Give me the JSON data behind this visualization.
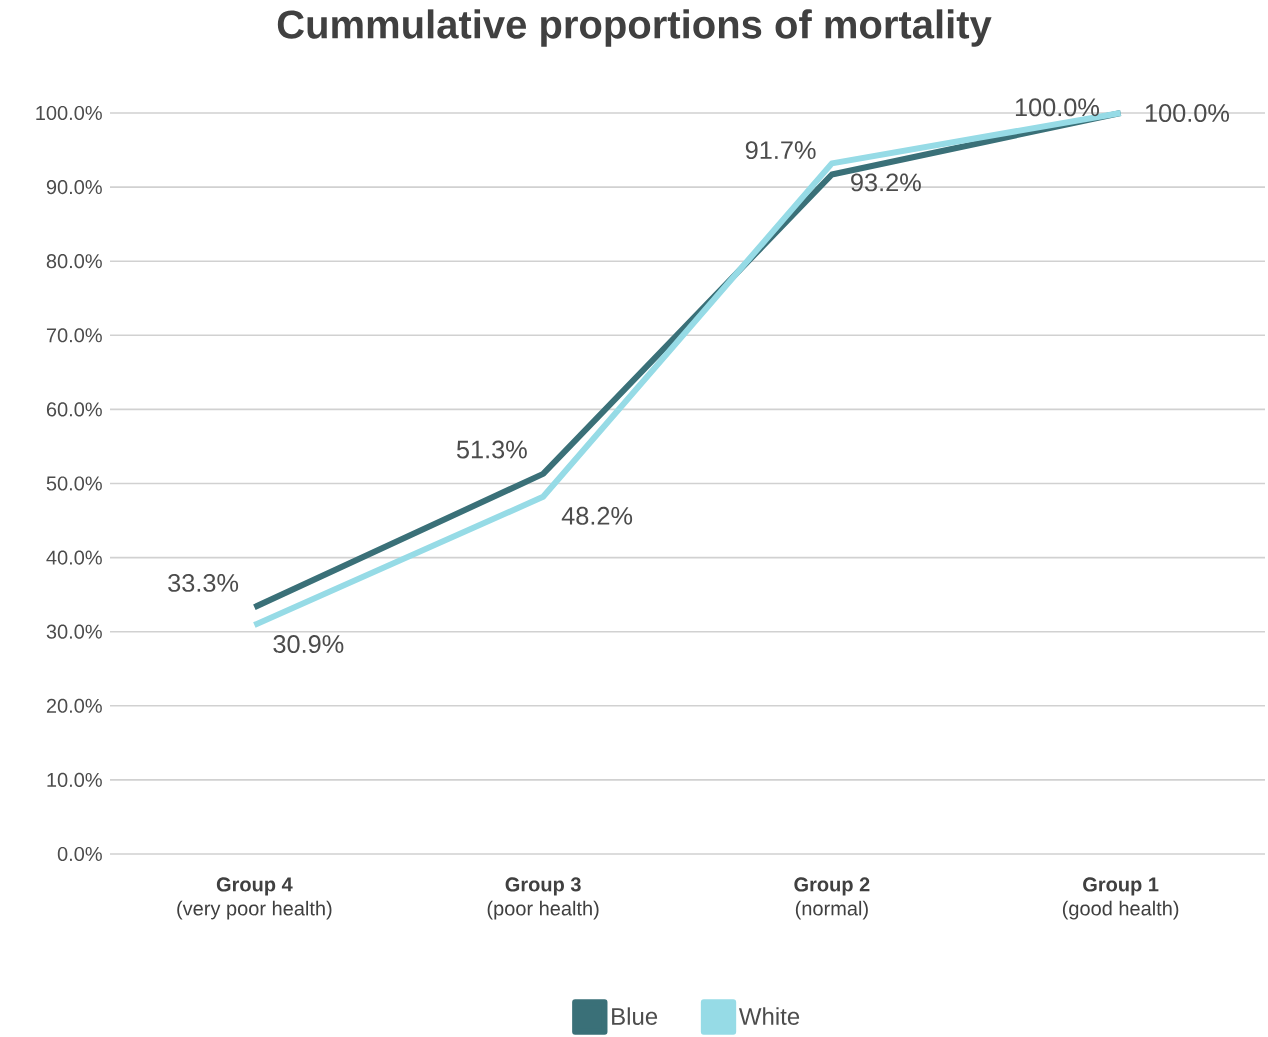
{
  "chart_data": {
    "type": "line",
    "title": "Cummulative proportions of mortality",
    "categories": [
      "**Group 4**\n(very poor health)",
      "**Group 3**\n(poor health)",
      "**Group 2**\n(normal)",
      "**Group 1**\n(good health)"
    ],
    "series": [
      {
        "name": "Blue",
        "color": "#3a7078",
        "values": [
          33.3,
          51.3,
          91.7,
          100.0
        ],
        "value_labels": [
          "33.3%",
          "51.3%",
          "91.7%",
          "100.0%"
        ]
      },
      {
        "name": "White",
        "color": "#96dbe6",
        "values": [
          30.9,
          48.2,
          93.2,
          100.0
        ],
        "value_labels": [
          "30.9%",
          "48.2%",
          "93.2%",
          "100.0%"
        ]
      }
    ],
    "ylim": [
      0,
      100
    ],
    "yticks": [
      {
        "value": 0,
        "label": "0.0%"
      },
      {
        "value": 10,
        "label": "10.0%"
      },
      {
        "value": 20,
        "label": "20.0%"
      },
      {
        "value": 30,
        "label": "30.0%"
      },
      {
        "value": 40,
        "label": "40.0%"
      },
      {
        "value": 50,
        "label": "50.0%"
      },
      {
        "value": 60,
        "label": "60.0%"
      },
      {
        "value": 70,
        "label": "70.0%"
      },
      {
        "value": 80,
        "label": "80.0%"
      },
      {
        "value": 90,
        "label": "90.0%"
      },
      {
        "value": 100,
        "label": "100.0%"
      }
    ],
    "grid": "y",
    "legend": "bottom",
    "marker": "none",
    "line_style": "solid"
  }
}
